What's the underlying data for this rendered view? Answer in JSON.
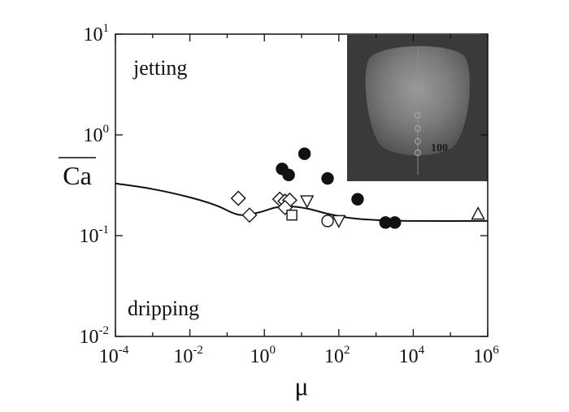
{
  "chart_data": {
    "type": "scatter",
    "x_scale": "log",
    "y_scale": "log",
    "xlim": [
      0.0001,
      1000000
    ],
    "ylim": [
      0.01,
      10
    ],
    "xlabel": "μ",
    "ylabel": "Ca",
    "ylabel_overline": true,
    "x_ticks": [
      {
        "value": 0.0001,
        "base": "10",
        "exp": "-4"
      },
      {
        "value": 0.01,
        "base": "10",
        "exp": "-2"
      },
      {
        "value": 1,
        "base": "10",
        "exp": "0"
      },
      {
        "value": 100,
        "base": "10",
        "exp": "2"
      },
      {
        "value": 10000,
        "base": "10",
        "exp": "4"
      },
      {
        "value": 1000000,
        "base": "10",
        "exp": "6"
      }
    ],
    "y_ticks": [
      {
        "value": 0.01,
        "base": "10",
        "exp": "-2"
      },
      {
        "value": 0.1,
        "base": "10",
        "exp": "-1"
      },
      {
        "value": 1,
        "base": "10",
        "exp": "0"
      },
      {
        "value": 10,
        "base": "10",
        "exp": "1"
      }
    ],
    "annotations": {
      "upper_region": "jetting",
      "lower_region": "dripping",
      "inset_label": "100"
    },
    "grid": false,
    "legend": "none",
    "curve": [
      {
        "x": 0.0001,
        "y": 0.33
      },
      {
        "x": 0.001,
        "y": 0.29
      },
      {
        "x": 0.01,
        "y": 0.24
      },
      {
        "x": 0.05,
        "y": 0.2
      },
      {
        "x": 0.15,
        "y": 0.167
      },
      {
        "x": 0.3,
        "y": 0.16
      },
      {
        "x": 0.8,
        "y": 0.172
      },
      {
        "x": 2,
        "y": 0.19
      },
      {
        "x": 5,
        "y": 0.195
      },
      {
        "x": 15,
        "y": 0.185
      },
      {
        "x": 50,
        "y": 0.165
      },
      {
        "x": 200,
        "y": 0.15
      },
      {
        "x": 1000,
        "y": 0.143
      },
      {
        "x": 10000,
        "y": 0.14
      },
      {
        "x": 1000000,
        "y": 0.14
      }
    ],
    "series": [
      {
        "marker": "filled-circle",
        "points": [
          {
            "x": 3,
            "y": 0.46
          },
          {
            "x": 4.5,
            "y": 0.4
          },
          {
            "x": 12,
            "y": 0.65
          },
          {
            "x": 50,
            "y": 0.37
          },
          {
            "x": 320,
            "y": 0.23
          },
          {
            "x": 1800,
            "y": 0.135
          },
          {
            "x": 3200,
            "y": 0.135
          }
        ]
      },
      {
        "marker": "open-diamond",
        "points": [
          {
            "x": 0.2,
            "y": 0.235
          },
          {
            "x": 0.4,
            "y": 0.16
          },
          {
            "x": 2.6,
            "y": 0.23
          },
          {
            "x": 3.6,
            "y": 0.22
          },
          {
            "x": 4.8,
            "y": 0.225
          },
          {
            "x": 3.6,
            "y": 0.19
          }
        ]
      },
      {
        "marker": "open-square",
        "points": [
          {
            "x": 5.5,
            "y": 0.16
          }
        ]
      },
      {
        "marker": "open-triangle-down",
        "points": [
          {
            "x": 14,
            "y": 0.22
          },
          {
            "x": 100,
            "y": 0.14
          }
        ]
      },
      {
        "marker": "open-circle",
        "points": [
          {
            "x": 50,
            "y": 0.14
          }
        ]
      },
      {
        "marker": "open-triangle-up",
        "points": [
          {
            "x": 550000,
            "y": 0.165
          }
        ]
      }
    ]
  }
}
